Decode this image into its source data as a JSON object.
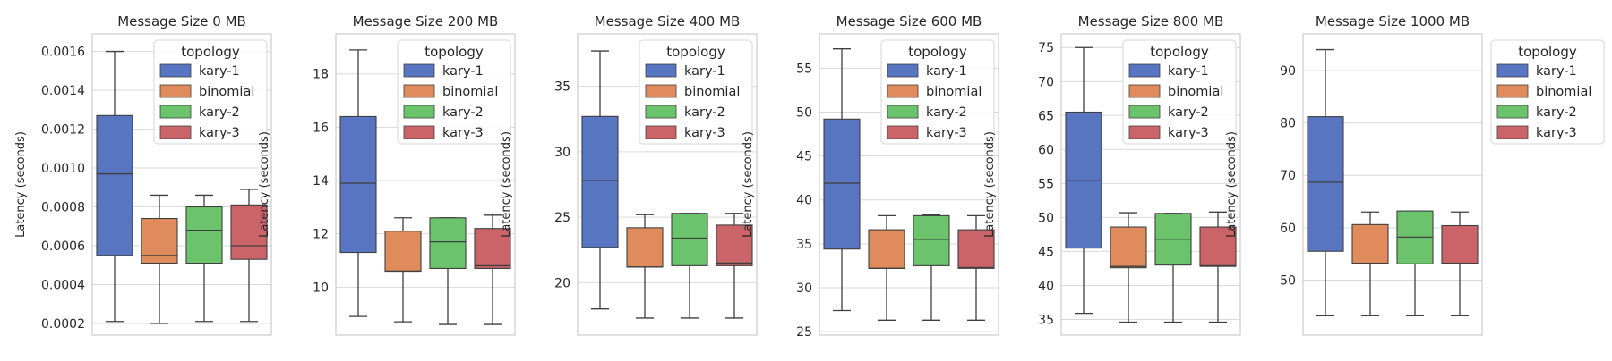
{
  "palette": {
    "kary-1": "#5875c1",
    "binomial": "#e08b5b",
    "kary-2": "#6bc36c",
    "kary-3": "#cb6468",
    "grid": "#d9d9d9",
    "frame": "#cccccc",
    "whisker": "#3f3f3f"
  },
  "chart_data": [
    {
      "type": "box",
      "title": "Message Size 0 MB",
      "ylabel": "Latency (seconds)",
      "ylim": [
        0.00014,
        0.00169
      ],
      "yticks": [
        0.0002,
        0.0004,
        0.0006,
        0.0008,
        0.001,
        0.0012,
        0.0014,
        0.0016
      ],
      "ytick_labels": [
        "0.0002",
        "0.0004",
        "0.0006",
        "0.0008",
        "0.0010",
        "0.0012",
        "0.0014",
        "0.0016"
      ],
      "grid": true,
      "legend": {
        "title": "topology",
        "placement": "upper-right",
        "entries": [
          "kary-1",
          "binomial",
          "kary-2",
          "kary-3"
        ]
      },
      "series": [
        {
          "name": "kary-1",
          "min": 0.00021,
          "q1": 0.00055,
          "median": 0.00097,
          "q3": 0.00127,
          "max": 0.0016
        },
        {
          "name": "binomial",
          "min": 0.0002,
          "q1": 0.00051,
          "median": 0.00055,
          "q3": 0.00074,
          "max": 0.00086
        },
        {
          "name": "kary-2",
          "min": 0.00021,
          "q1": 0.00051,
          "median": 0.00068,
          "q3": 0.0008,
          "max": 0.00086
        },
        {
          "name": "kary-3",
          "min": 0.00021,
          "q1": 0.00053,
          "median": 0.0006,
          "q3": 0.00081,
          "max": 0.00089
        }
      ]
    },
    {
      "type": "box",
      "title": "Message Size 200 MB",
      "ylabel": "Latency (seconds)",
      "ylim": [
        8.2,
        19.5
      ],
      "yticks": [
        10,
        12,
        14,
        16,
        18
      ],
      "ytick_labels": [
        "10",
        "12",
        "14",
        "16",
        "18"
      ],
      "grid": true,
      "legend": {
        "title": "topology",
        "placement": "upper-right",
        "entries": [
          "kary-1",
          "binomial",
          "kary-2",
          "kary-3"
        ]
      },
      "series": [
        {
          "name": "kary-1",
          "min": 8.9,
          "q1": 11.3,
          "median": 13.9,
          "q3": 16.4,
          "max": 18.9
        },
        {
          "name": "binomial",
          "min": 8.7,
          "q1": 10.6,
          "median": 10.6,
          "q3": 12.1,
          "max": 12.6
        },
        {
          "name": "kary-2",
          "min": 8.6,
          "q1": 10.7,
          "median": 11.7,
          "q3": 12.6,
          "max": 12.6
        },
        {
          "name": "kary-3",
          "min": 8.6,
          "q1": 10.7,
          "median": 10.8,
          "q3": 12.2,
          "max": 12.7
        }
      ]
    },
    {
      "type": "box",
      "title": "Message Size 400 MB",
      "ylabel": "Latency (seconds)",
      "ylim": [
        16.0,
        39.0
      ],
      "yticks": [
        20,
        25,
        30,
        35
      ],
      "ytick_labels": [
        "20",
        "25",
        "30",
        "35"
      ],
      "grid": true,
      "legend": {
        "title": "topology",
        "placement": "upper-right",
        "entries": [
          "kary-1",
          "binomial",
          "kary-2",
          "kary-3"
        ]
      },
      "series": [
        {
          "name": "kary-1",
          "min": 18.0,
          "q1": 22.7,
          "median": 27.8,
          "q3": 32.7,
          "max": 37.7
        },
        {
          "name": "binomial",
          "min": 17.3,
          "q1": 21.2,
          "median": 21.2,
          "q3": 24.2,
          "max": 25.2
        },
        {
          "name": "kary-2",
          "min": 17.3,
          "q1": 21.3,
          "median": 23.4,
          "q3": 25.3,
          "max": 25.3
        },
        {
          "name": "kary-3",
          "min": 17.3,
          "q1": 21.3,
          "median": 21.5,
          "q3": 24.4,
          "max": 25.3
        }
      ]
    },
    {
      "type": "box",
      "title": "Message Size 600 MB",
      "ylabel": "Latency (seconds)",
      "ylim": [
        24.6,
        58.9
      ],
      "yticks": [
        25,
        30,
        35,
        40,
        45,
        50,
        55
      ],
      "ytick_labels": [
        "25",
        "30",
        "35",
        "40",
        "45",
        "50",
        "55"
      ],
      "grid": true,
      "legend": {
        "title": "topology",
        "placement": "upper-right",
        "entries": [
          "kary-1",
          "binomial",
          "kary-2",
          "kary-3"
        ]
      },
      "series": [
        {
          "name": "kary-1",
          "min": 27.4,
          "q1": 34.4,
          "median": 41.9,
          "q3": 49.2,
          "max": 57.2
        },
        {
          "name": "binomial",
          "min": 26.3,
          "q1": 32.2,
          "median": 32.2,
          "q3": 36.6,
          "max": 38.2
        },
        {
          "name": "kary-2",
          "min": 26.3,
          "q1": 32.5,
          "median": 35.5,
          "q3": 38.2,
          "max": 38.3
        },
        {
          "name": "kary-3",
          "min": 26.3,
          "q1": 32.2,
          "median": 32.3,
          "q3": 36.6,
          "max": 38.2
        }
      ]
    },
    {
      "type": "box",
      "title": "Message Size 800 MB",
      "ylabel": "Latency (seconds)",
      "ylim": [
        32.7,
        77.0
      ],
      "yticks": [
        35,
        40,
        45,
        50,
        55,
        60,
        65,
        70,
        75
      ],
      "ytick_labels": [
        "35",
        "40",
        "45",
        "50",
        "55",
        "60",
        "65",
        "70",
        "75"
      ],
      "grid": true,
      "legend": {
        "title": "topology",
        "placement": "upper-right",
        "entries": [
          "kary-1",
          "binomial",
          "kary-2",
          "kary-3"
        ]
      },
      "series": [
        {
          "name": "kary-1",
          "min": 35.9,
          "q1": 45.5,
          "median": 55.4,
          "q3": 65.5,
          "max": 75.0
        },
        {
          "name": "binomial",
          "min": 34.6,
          "q1": 42.6,
          "median": 42.8,
          "q3": 48.6,
          "max": 50.7
        },
        {
          "name": "kary-2",
          "min": 34.6,
          "q1": 43.0,
          "median": 46.8,
          "q3": 50.6,
          "max": 50.6
        },
        {
          "name": "kary-3",
          "min": 34.6,
          "q1": 42.8,
          "median": 42.9,
          "q3": 48.6,
          "max": 50.8
        }
      ]
    },
    {
      "type": "box",
      "title": "Message Size 1000 MB",
      "ylabel": "Latency (seconds)",
      "ylim": [
        39.5,
        97.0
      ],
      "yticks": [
        50,
        60,
        70,
        80,
        90
      ],
      "ytick_labels": [
        "50",
        "60",
        "70",
        "80",
        "90"
      ],
      "grid": true,
      "legend": {
        "title": "topology",
        "placement": "outside-right",
        "entries": [
          "kary-1",
          "binomial",
          "kary-2",
          "kary-3"
        ]
      },
      "series": [
        {
          "name": "kary-1",
          "min": 43.2,
          "q1": 55.5,
          "median": 68.7,
          "q3": 81.2,
          "max": 94.0
        },
        {
          "name": "binomial",
          "min": 43.2,
          "q1": 53.1,
          "median": 53.2,
          "q3": 60.6,
          "max": 63.0
        },
        {
          "name": "kary-2",
          "min": 43.2,
          "q1": 53.1,
          "median": 58.2,
          "q3": 63.2,
          "max": 63.2
        },
        {
          "name": "kary-3",
          "min": 43.2,
          "q1": 53.1,
          "median": 53.2,
          "q3": 60.4,
          "max": 63.0
        }
      ]
    }
  ]
}
